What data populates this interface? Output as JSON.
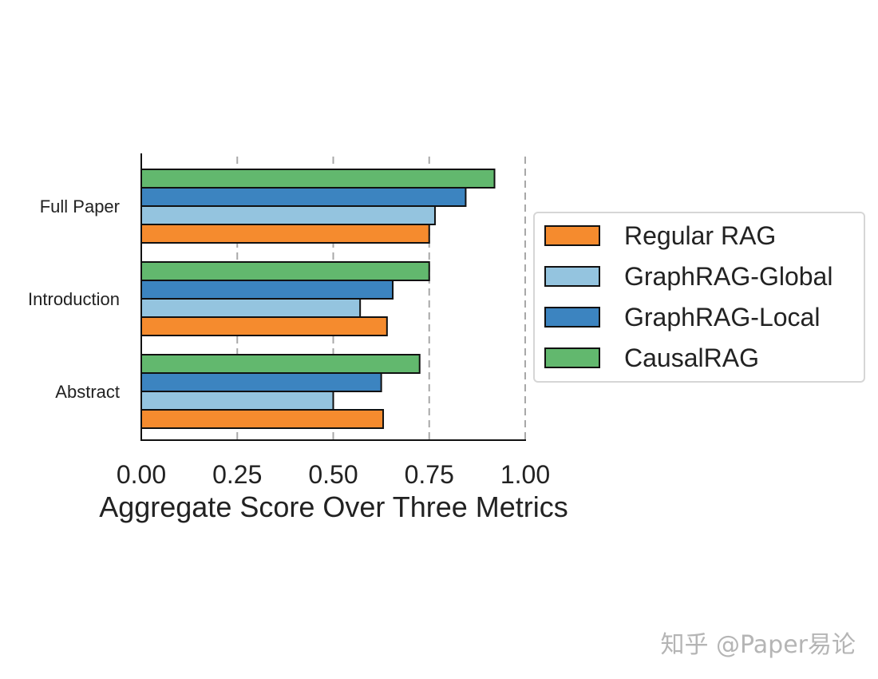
{
  "chart_data": {
    "type": "bar",
    "orientation": "horizontal",
    "categories": [
      "Abstract",
      "Introduction",
      "Full Paper"
    ],
    "series": [
      {
        "name": "Regular RAG",
        "color": "#f58b2e",
        "values": [
          0.63,
          0.64,
          0.75
        ]
      },
      {
        "name": "GraphRAG-Global",
        "color": "#94c4df",
        "values": [
          0.5,
          0.57,
          0.765
        ]
      },
      {
        "name": "GraphRAG-Local",
        "color": "#3c84c0",
        "values": [
          0.625,
          0.655,
          0.845
        ]
      },
      {
        "name": "CausalRAG",
        "color": "#62b86e",
        "values": [
          0.725,
          0.75,
          0.92
        ]
      }
    ],
    "xlabel": "Aggregate Score Over Three Metrics",
    "ylabel": "",
    "xlim": [
      0,
      1.0
    ],
    "xticks": [
      "0.00",
      "0.25",
      "0.50",
      "0.75",
      "1.00"
    ],
    "grid": "vertical dashed",
    "legend_position": "right"
  },
  "watermark": "知乎 @Paper易论"
}
